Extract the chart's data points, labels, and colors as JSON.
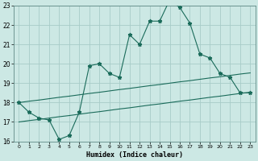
{
  "title": "",
  "xlabel": "Humidex (Indice chaleur)",
  "x_values": [
    0,
    1,
    2,
    3,
    4,
    5,
    6,
    7,
    8,
    9,
    10,
    11,
    12,
    13,
    14,
    15,
    16,
    17,
    18,
    19,
    20,
    21,
    22,
    23
  ],
  "y_main": [
    18.0,
    17.5,
    17.2,
    17.1,
    16.1,
    16.3,
    17.5,
    19.9,
    20.0,
    19.5,
    19.3,
    21.5,
    21.0,
    22.2,
    22.2,
    23.3,
    22.9,
    22.1,
    20.5,
    20.3,
    19.5,
    19.3,
    18.5,
    18.5
  ],
  "y_upper": [
    18.0,
    18.07,
    18.13,
    18.2,
    18.27,
    18.33,
    18.4,
    18.47,
    18.53,
    18.6,
    18.67,
    18.73,
    18.8,
    18.87,
    18.93,
    19.0,
    19.07,
    19.13,
    19.2,
    19.27,
    19.33,
    19.4,
    19.47,
    19.53
  ],
  "y_lower": [
    17.0,
    17.07,
    17.13,
    17.2,
    17.27,
    17.33,
    17.4,
    17.47,
    17.53,
    17.6,
    17.67,
    17.73,
    17.8,
    17.87,
    17.93,
    18.0,
    18.07,
    18.13,
    18.2,
    18.27,
    18.33,
    18.4,
    18.47,
    18.53
  ],
  "ylim": [
    16,
    23
  ],
  "yticks": [
    16,
    17,
    18,
    19,
    20,
    21,
    22,
    23
  ],
  "line_color": "#1a6b5a",
  "bg_color": "#cce8e4",
  "grid_color": "#a8ccc8",
  "marker": "*",
  "marker_size": 3.5,
  "linewidth": 0.8
}
